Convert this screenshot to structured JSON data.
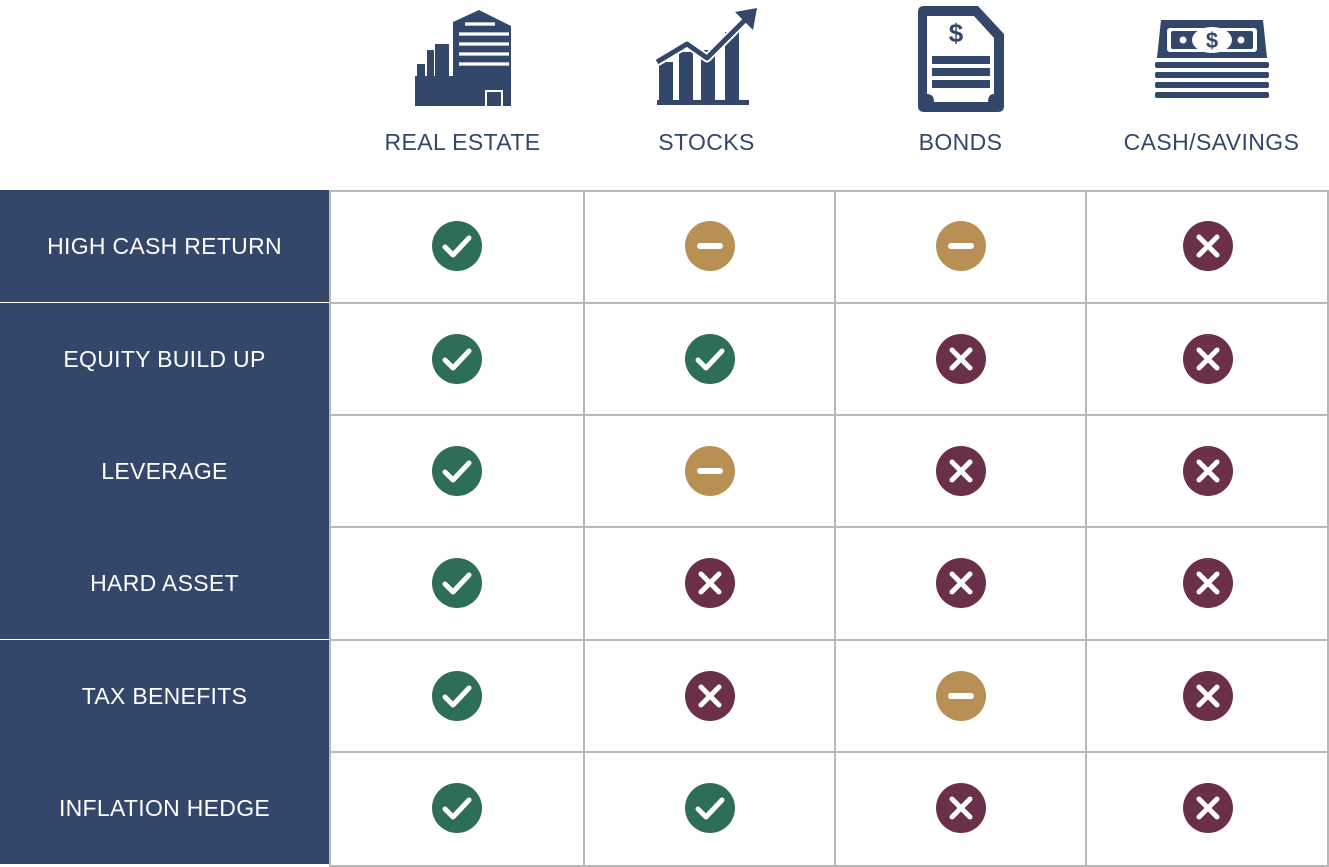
{
  "columns": [
    {
      "label": "REAL ESTATE",
      "icon": "building-icon"
    },
    {
      "label": "STOCKS",
      "icon": "stock-growth-chart-icon"
    },
    {
      "label": "BONDS",
      "icon": "bond-certificate-icon"
    },
    {
      "label": "CASH/SAVINGS",
      "icon": "cash-stack-icon"
    }
  ],
  "rows": [
    {
      "label": "HIGH CASH RETURN",
      "values": [
        "yes",
        "partial",
        "partial",
        "no"
      ]
    },
    {
      "label": "EQUITY BUILD UP",
      "values": [
        "yes",
        "yes",
        "no",
        "no"
      ]
    },
    {
      "label": "LEVERAGE",
      "values": [
        "yes",
        "partial",
        "no",
        "no"
      ]
    },
    {
      "label": "HARD ASSET",
      "values": [
        "yes",
        "no",
        "no",
        "no"
      ]
    },
    {
      "label": "TAX BENEFITS",
      "values": [
        "yes",
        "no",
        "partial",
        "no"
      ]
    },
    {
      "label": "INFLATION HEDGE",
      "values": [
        "yes",
        "yes",
        "no",
        "no"
      ]
    }
  ],
  "status_icons": {
    "yes": {
      "icon": "check-icon",
      "color": "#2e6e57"
    },
    "partial": {
      "icon": "minus-icon",
      "color": "#b88f55"
    },
    "no": {
      "icon": "x-icon",
      "color": "#6b3049"
    }
  },
  "colors": {
    "navy": "#33476a",
    "grid_line": "#b8b8b8"
  }
}
